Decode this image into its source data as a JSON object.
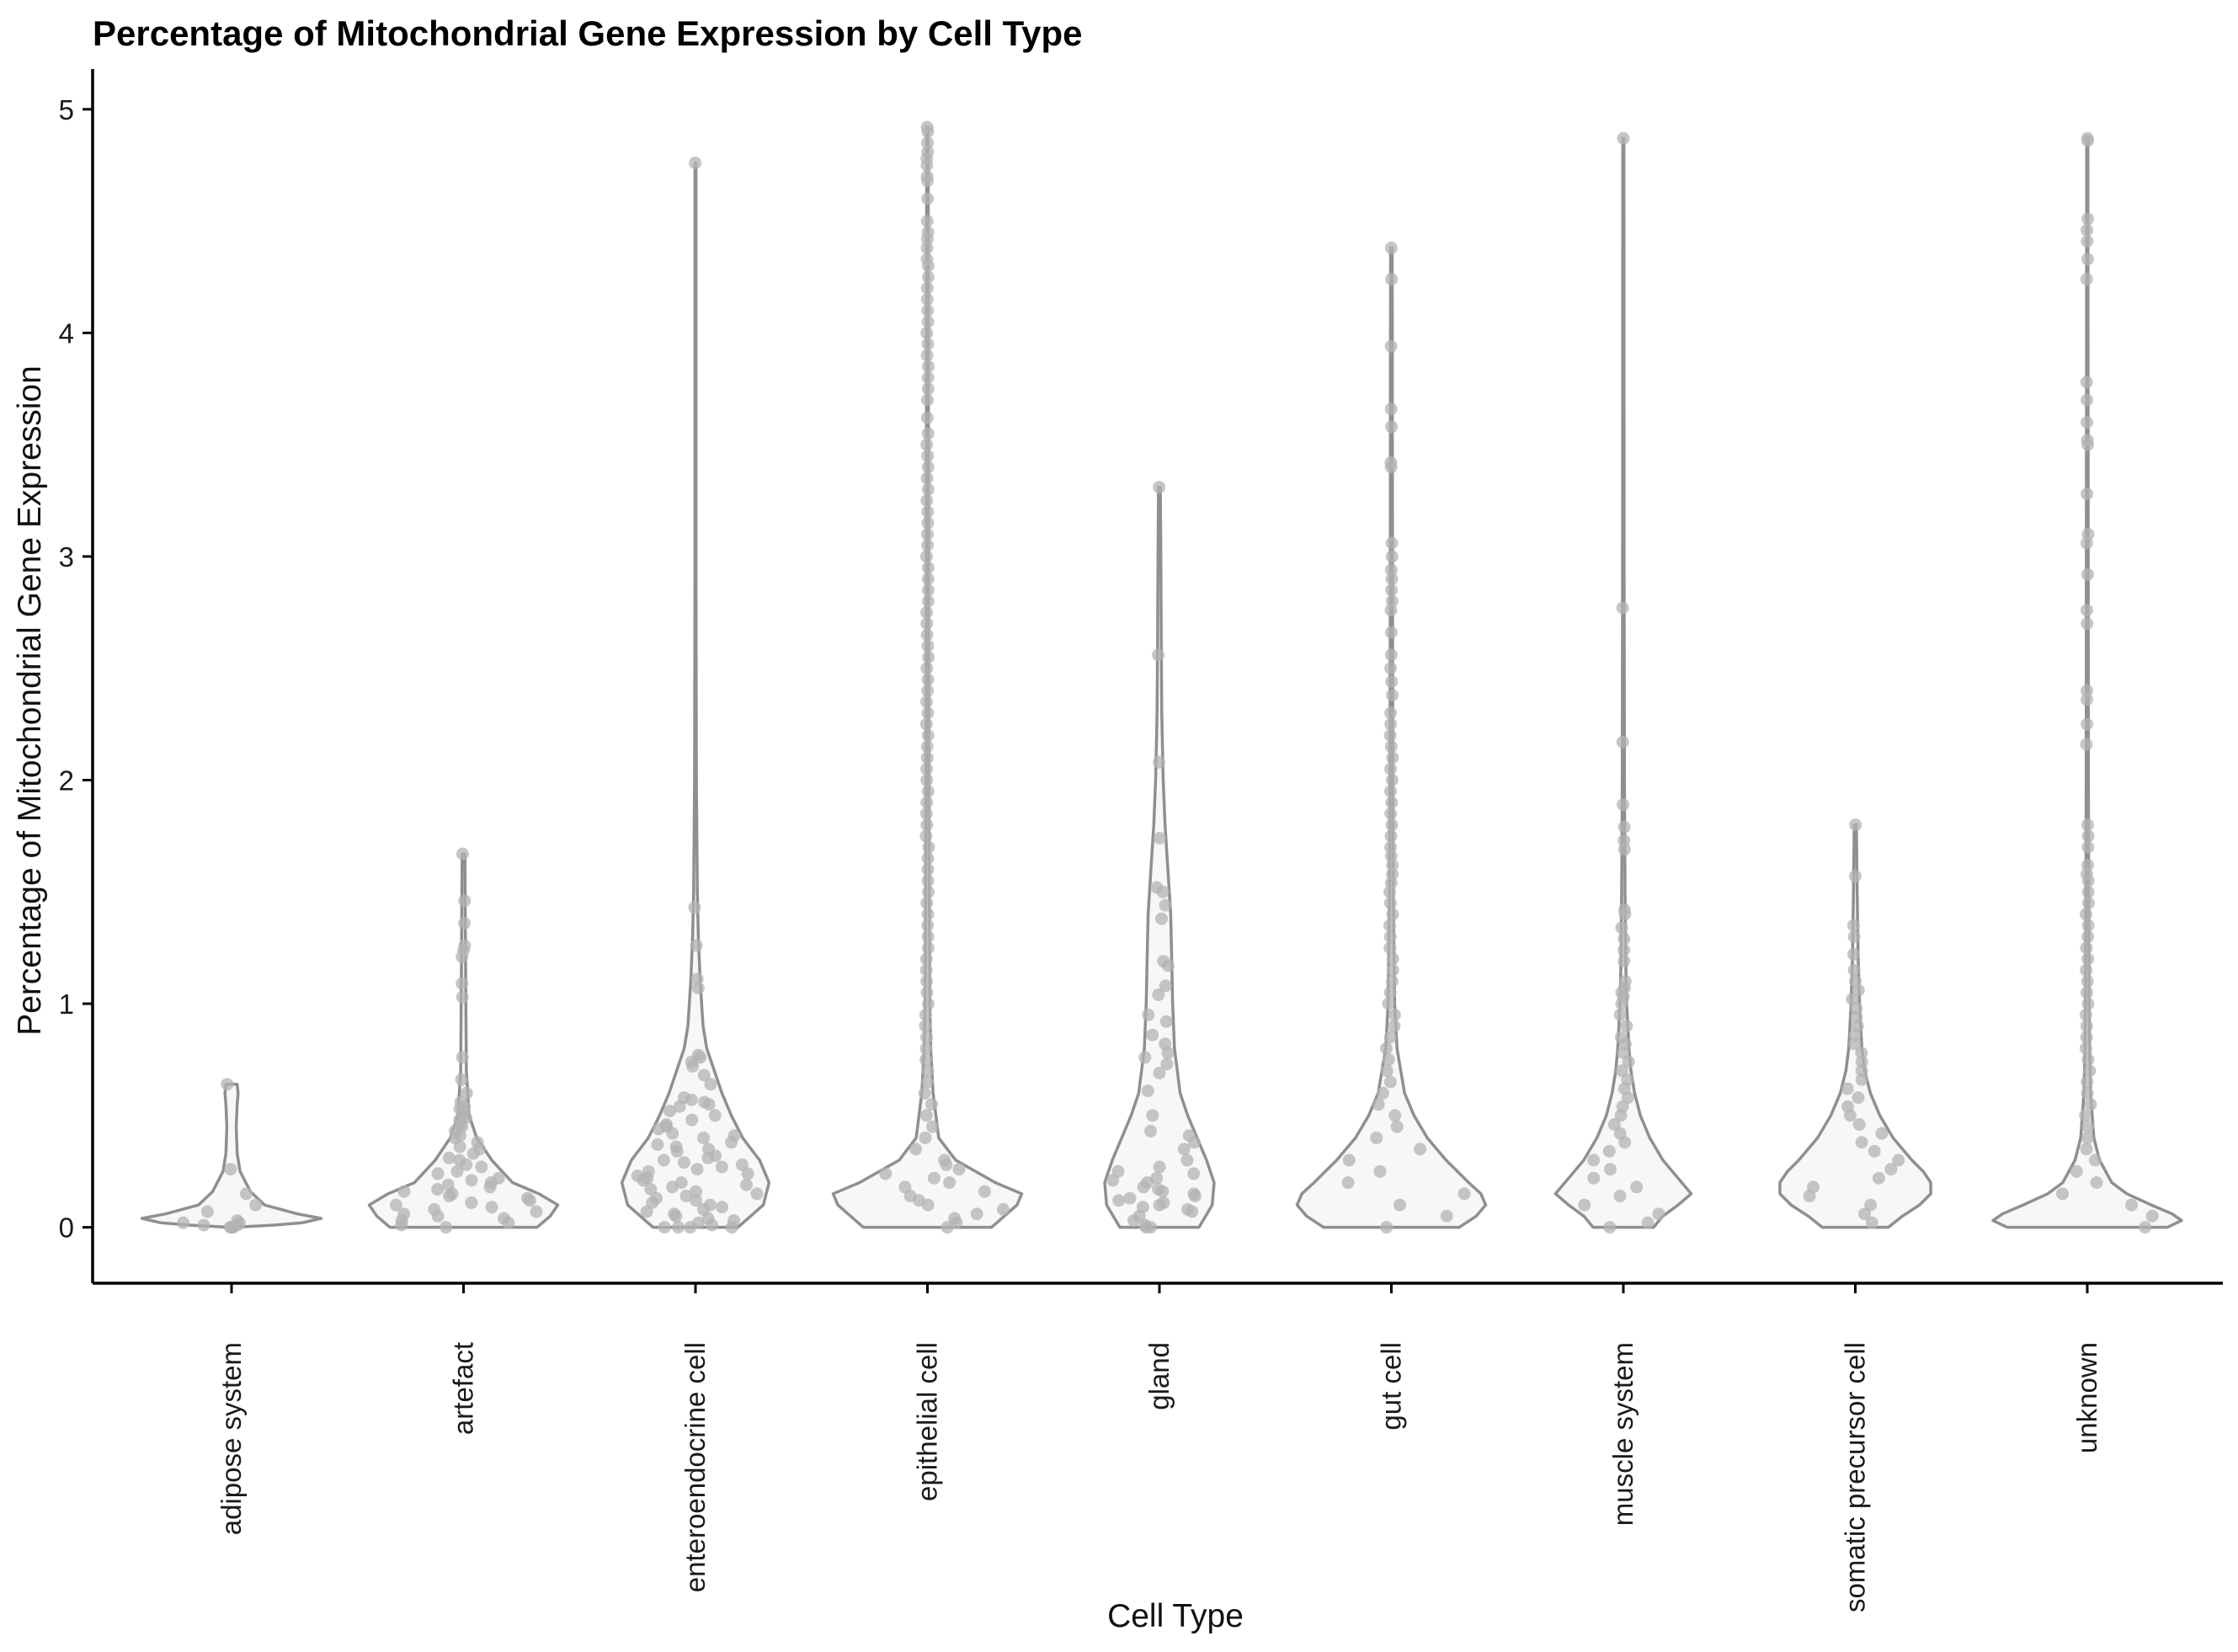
{
  "chart_data": {
    "type": "violin",
    "title": "Percentage of Mitochondrial Gene Expression by Cell Type",
    "xlabel": "Cell Type",
    "ylabel": "Percentage of Mitochondrial Gene Expression",
    "ylim": [
      -0.25,
      5.18
    ],
    "yticks": [
      0,
      1,
      2,
      3,
      4,
      5
    ],
    "grid": false,
    "legend": "none",
    "colors": {
      "violin_stroke": "#8f8f8f",
      "violin_fill": "#f7f7f7",
      "point": "#b3b3b3",
      "axis": "#000000"
    },
    "categories": [
      {
        "label": "adipose system",
        "max": 0.64,
        "density": [
          [
            0,
            0.02
          ],
          [
            0.01,
            0.45
          ],
          [
            0.02,
            0.75
          ],
          [
            0.04,
            0.95
          ],
          [
            0.06,
            0.7
          ],
          [
            0.1,
            0.35
          ],
          [
            0.16,
            0.2
          ],
          [
            0.25,
            0.09
          ],
          [
            0.33,
            0.06
          ],
          [
            0.45,
            0.05
          ],
          [
            0.55,
            0.06
          ],
          [
            0.6,
            0.07
          ],
          [
            0.64,
            0.06
          ]
        ],
        "points": [
          0.64,
          0.26,
          0.15,
          0.1,
          0.07,
          0.03,
          0.02,
          0.02,
          0.01,
          0.01,
          0.0,
          0.0,
          0.0,
          0.0
        ]
      },
      {
        "label": "artefact",
        "max": 1.67,
        "density": [
          [
            0,
            0.78
          ],
          [
            0.05,
            0.92
          ],
          [
            0.1,
            1.0
          ],
          [
            0.15,
            0.8
          ],
          [
            0.2,
            0.52
          ],
          [
            0.3,
            0.3
          ],
          [
            0.4,
            0.14
          ],
          [
            0.5,
            0.06
          ],
          [
            0.7,
            0.03
          ],
          [
            1.0,
            0.025
          ],
          [
            1.3,
            0.02
          ],
          [
            1.67,
            0.015
          ]
        ],
        "points": [
          1.67,
          1.46,
          1.36,
          1.26,
          1.24,
          1.21,
          1.09,
          1.03,
          0.76,
          0.66,
          0.6,
          0.56,
          0.54,
          0.53,
          0.52,
          0.5,
          0.49,
          0.48,
          0.46,
          0.45,
          0.43,
          0.41,
          0.4,
          0.38,
          0.36,
          0.35,
          0.33,
          0.31,
          0.3,
          0.28,
          0.27,
          0.25,
          0.24,
          0.22,
          0.21,
          0.2,
          0.19,
          0.18,
          0.17,
          0.16,
          0.15,
          0.14,
          0.13,
          0.12,
          0.11,
          0.1,
          0.09,
          0.08,
          0.07,
          0.06,
          0.05,
          0.04,
          0.03,
          0.02,
          0.01,
          0.0
        ]
      },
      {
        "label": "enteroendocrine cell",
        "max": 4.76,
        "density": [
          [
            0,
            0.45
          ],
          [
            0.1,
            0.72
          ],
          [
            0.2,
            0.78
          ],
          [
            0.3,
            0.68
          ],
          [
            0.4,
            0.5
          ],
          [
            0.5,
            0.38
          ],
          [
            0.6,
            0.28
          ],
          [
            0.7,
            0.2
          ],
          [
            0.8,
            0.12
          ],
          [
            0.9,
            0.08
          ],
          [
            1.1,
            0.05
          ],
          [
            1.3,
            0.03
          ],
          [
            1.5,
            0.02
          ],
          [
            2.0,
            0.01
          ],
          [
            3.0,
            0.005
          ],
          [
            4.76,
            0.005
          ]
        ],
        "points": [
          4.76,
          1.43,
          1.26,
          1.11,
          1.07,
          0.77,
          0.76,
          0.74,
          0.72,
          0.68,
          0.64,
          0.58,
          0.57,
          0.56,
          0.55,
          0.54,
          0.52,
          0.5,
          0.48,
          0.46,
          0.45,
          0.44,
          0.42,
          0.41,
          0.4,
          0.38,
          0.37,
          0.36,
          0.35,
          0.34,
          0.32,
          0.31,
          0.3,
          0.29,
          0.28,
          0.27,
          0.26,
          0.25,
          0.24,
          0.23,
          0.22,
          0.21,
          0.2,
          0.19,
          0.18,
          0.17,
          0.16,
          0.15,
          0.14,
          0.13,
          0.12,
          0.11,
          0.1,
          0.09,
          0.08,
          0.07,
          0.06,
          0.05,
          0.04,
          0.03,
          0.02,
          0.01,
          0.0,
          0.0,
          0.0,
          0.0
        ]
      },
      {
        "label": "epithelial cell",
        "max": 4.92,
        "density": [
          [
            0,
            0.68
          ],
          [
            0.1,
            0.95
          ],
          [
            0.15,
            1.0
          ],
          [
            0.2,
            0.72
          ],
          [
            0.3,
            0.3
          ],
          [
            0.4,
            0.12
          ],
          [
            0.6,
            0.06
          ],
          [
            0.8,
            0.035
          ],
          [
            1.0,
            0.025
          ],
          [
            1.5,
            0.02
          ],
          [
            2.0,
            0.015
          ],
          [
            3.0,
            0.012
          ],
          [
            4.0,
            0.01
          ],
          [
            4.92,
            0.008
          ]
        ],
        "points": [
          4.92,
          4.9,
          4.85,
          4.81,
          4.78,
          4.75,
          4.7,
          4.68,
          4.6,
          4.5,
          4.45,
          4.42,
          4.38,
          4.33,
          4.3,
          4.25,
          4.2,
          4.15,
          4.1,
          4.05,
          4.0,
          3.95,
          3.9,
          3.85,
          3.8,
          3.75,
          3.7,
          3.62,
          3.55,
          3.5,
          3.45,
          3.4,
          3.35,
          3.3,
          3.25,
          3.2,
          3.15,
          3.1,
          3.05,
          3.0,
          2.95,
          2.9,
          2.85,
          2.8,
          2.75,
          2.7,
          2.65,
          2.6,
          2.55,
          2.5,
          2.45,
          2.4,
          2.35,
          2.3,
          2.25,
          2.2,
          2.15,
          2.1,
          2.05,
          2.0,
          1.95,
          1.9,
          1.85,
          1.8,
          1.75,
          1.7,
          1.65,
          1.6,
          1.55,
          1.5,
          1.45,
          1.4,
          1.35,
          1.3,
          1.25,
          1.2,
          1.15,
          1.1,
          1.05,
          1.0,
          0.95,
          0.9,
          0.85,
          0.8,
          0.75,
          0.7,
          0.65,
          0.6,
          0.55,
          0.5,
          0.45,
          0.4,
          0.35,
          0.3,
          0.28,
          0.26,
          0.24,
          0.22,
          0.2,
          0.18,
          0.16,
          0.14,
          0.12,
          0.1,
          0.08,
          0.06,
          0.04,
          0.02,
          0.0
        ]
      },
      {
        "label": "gland",
        "max": 3.31,
        "density": [
          [
            0,
            0.42
          ],
          [
            0.1,
            0.56
          ],
          [
            0.2,
            0.58
          ],
          [
            0.3,
            0.5
          ],
          [
            0.4,
            0.4
          ],
          [
            0.5,
            0.3
          ],
          [
            0.6,
            0.22
          ],
          [
            0.8,
            0.16
          ],
          [
            1.0,
            0.14
          ],
          [
            1.2,
            0.13
          ],
          [
            1.4,
            0.12
          ],
          [
            1.6,
            0.09
          ],
          [
            1.8,
            0.06
          ],
          [
            2.0,
            0.04
          ],
          [
            2.3,
            0.025
          ],
          [
            2.6,
            0.02
          ],
          [
            3.0,
            0.015
          ],
          [
            3.31,
            0.01
          ]
        ],
        "points": [
          3.31,
          2.56,
          2.08,
          1.74,
          1.52,
          1.5,
          1.44,
          1.38,
          1.19,
          1.17,
          1.08,
          1.04,
          0.95,
          0.92,
          0.86,
          0.82,
          0.78,
          0.76,
          0.73,
          0.69,
          0.61,
          0.5,
          0.43,
          0.41,
          0.38,
          0.35,
          0.3,
          0.27,
          0.25,
          0.24,
          0.22,
          0.21,
          0.2,
          0.18,
          0.17,
          0.16,
          0.15,
          0.14,
          0.13,
          0.12,
          0.11,
          0.1,
          0.09,
          0.08,
          0.07,
          0.05,
          0.03,
          0.01,
          0.0,
          0.0
        ]
      },
      {
        "label": "gut cell",
        "max": 4.38,
        "density": [
          [
            0,
            0.72
          ],
          [
            0.05,
            0.9
          ],
          [
            0.1,
            1.0
          ],
          [
            0.15,
            0.95
          ],
          [
            0.2,
            0.82
          ],
          [
            0.3,
            0.58
          ],
          [
            0.4,
            0.38
          ],
          [
            0.5,
            0.24
          ],
          [
            0.6,
            0.14
          ],
          [
            0.8,
            0.06
          ],
          [
            1.0,
            0.035
          ],
          [
            1.5,
            0.02
          ],
          [
            2.0,
            0.015
          ],
          [
            3.0,
            0.012
          ],
          [
            4.0,
            0.01
          ],
          [
            4.38,
            0.008
          ]
        ],
        "points": [
          4.38,
          4.24,
          3.94,
          3.66,
          3.58,
          3.42,
          3.4,
          3.06,
          3.0,
          2.94,
          2.9,
          2.85,
          2.8,
          2.76,
          2.66,
          2.56,
          2.5,
          2.44,
          2.38,
          2.3,
          2.25,
          2.2,
          2.15,
          2.1,
          2.05,
          2.0,
          1.95,
          1.9,
          1.85,
          1.8,
          1.75,
          1.7,
          1.66,
          1.62,
          1.58,
          1.54,
          1.5,
          1.45,
          1.4,
          1.35,
          1.3,
          1.25,
          1.2,
          1.15,
          1.1,
          1.05,
          1.0,
          0.95,
          0.9,
          0.85,
          0.8,
          0.75,
          0.7,
          0.65,
          0.6,
          0.55,
          0.5,
          0.45,
          0.4,
          0.35,
          0.3,
          0.25,
          0.2,
          0.15,
          0.1,
          0.05,
          0.0
        ]
      },
      {
        "label": "muscle system",
        "max": 4.87,
        "density": [
          [
            0,
            0.32
          ],
          [
            0.05,
            0.42
          ],
          [
            0.1,
            0.58
          ],
          [
            0.15,
            0.72
          ],
          [
            0.2,
            0.62
          ],
          [
            0.3,
            0.42
          ],
          [
            0.4,
            0.28
          ],
          [
            0.5,
            0.18
          ],
          [
            0.6,
            0.12
          ],
          [
            0.7,
            0.08
          ],
          [
            0.8,
            0.06
          ],
          [
            1.0,
            0.035
          ],
          [
            1.2,
            0.025
          ],
          [
            1.5,
            0.018
          ],
          [
            2.0,
            0.012
          ],
          [
            3.0,
            0.008
          ],
          [
            4.87,
            0.006
          ]
        ],
        "points": [
          4.87,
          2.77,
          2.17,
          1.89,
          1.79,
          1.73,
          1.69,
          1.42,
          1.4,
          1.34,
          1.29,
          1.24,
          1.19,
          1.1,
          1.07,
          1.05,
          1.03,
          1.0,
          0.95,
          0.9,
          0.85,
          0.82,
          0.78,
          0.74,
          0.7,
          0.66,
          0.62,
          0.58,
          0.54,
          0.5,
          0.46,
          0.42,
          0.38,
          0.34,
          0.3,
          0.26,
          0.22,
          0.18,
          0.14,
          0.1,
          0.06,
          0.02,
          0.0
        ]
      },
      {
        "label": "somatic precursor cell",
        "max": 1.8,
        "density": [
          [
            0,
            0.35
          ],
          [
            0.05,
            0.5
          ],
          [
            0.1,
            0.68
          ],
          [
            0.15,
            0.8
          ],
          [
            0.2,
            0.8
          ],
          [
            0.25,
            0.72
          ],
          [
            0.3,
            0.6
          ],
          [
            0.4,
            0.4
          ],
          [
            0.5,
            0.26
          ],
          [
            0.6,
            0.16
          ],
          [
            0.7,
            0.1
          ],
          [
            0.8,
            0.07
          ],
          [
            1.0,
            0.045
          ],
          [
            1.2,
            0.03
          ],
          [
            1.5,
            0.02
          ],
          [
            1.8,
            0.012
          ]
        ],
        "points": [
          1.8,
          1.57,
          1.35,
          1.3,
          1.22,
          1.15,
          1.1,
          1.06,
          1.02,
          0.98,
          0.94,
          0.9,
          0.86,
          0.82,
          0.78,
          0.74,
          0.7,
          0.66,
          0.62,
          0.58,
          0.54,
          0.5,
          0.46,
          0.42,
          0.38,
          0.34,
          0.3,
          0.26,
          0.22,
          0.18,
          0.14,
          0.1,
          0.06,
          0.02
        ]
      },
      {
        "label": "unknown",
        "max": 4.87,
        "density": [
          [
            0,
            0.85
          ],
          [
            0.03,
            1.0
          ],
          [
            0.06,
            0.9
          ],
          [
            0.1,
            0.68
          ],
          [
            0.15,
            0.42
          ],
          [
            0.2,
            0.26
          ],
          [
            0.3,
            0.13
          ],
          [
            0.4,
            0.07
          ],
          [
            0.6,
            0.035
          ],
          [
            0.8,
            0.025
          ],
          [
            1.0,
            0.02
          ],
          [
            1.5,
            0.015
          ],
          [
            2.0,
            0.012
          ],
          [
            3.0,
            0.01
          ],
          [
            4.0,
            0.008
          ],
          [
            4.87,
            0.006
          ]
        ],
        "points": [
          4.87,
          4.86,
          4.51,
          4.46,
          4.41,
          4.33,
          4.24,
          3.78,
          3.7,
          3.6,
          3.52,
          3.5,
          3.28,
          3.1,
          3.06,
          2.92,
          2.76,
          2.7,
          2.4,
          2.36,
          2.25,
          2.16,
          1.8,
          1.75,
          1.7,
          1.62,
          1.58,
          1.55,
          1.5,
          1.45,
          1.4,
          1.35,
          1.3,
          1.25,
          1.2,
          1.15,
          1.1,
          1.05,
          1.0,
          0.95,
          0.9,
          0.85,
          0.8,
          0.75,
          0.7,
          0.65,
          0.6,
          0.55,
          0.5,
          0.45,
          0.4,
          0.35,
          0.3,
          0.25,
          0.2,
          0.15,
          0.1,
          0.05,
          0.0
        ]
      }
    ]
  }
}
